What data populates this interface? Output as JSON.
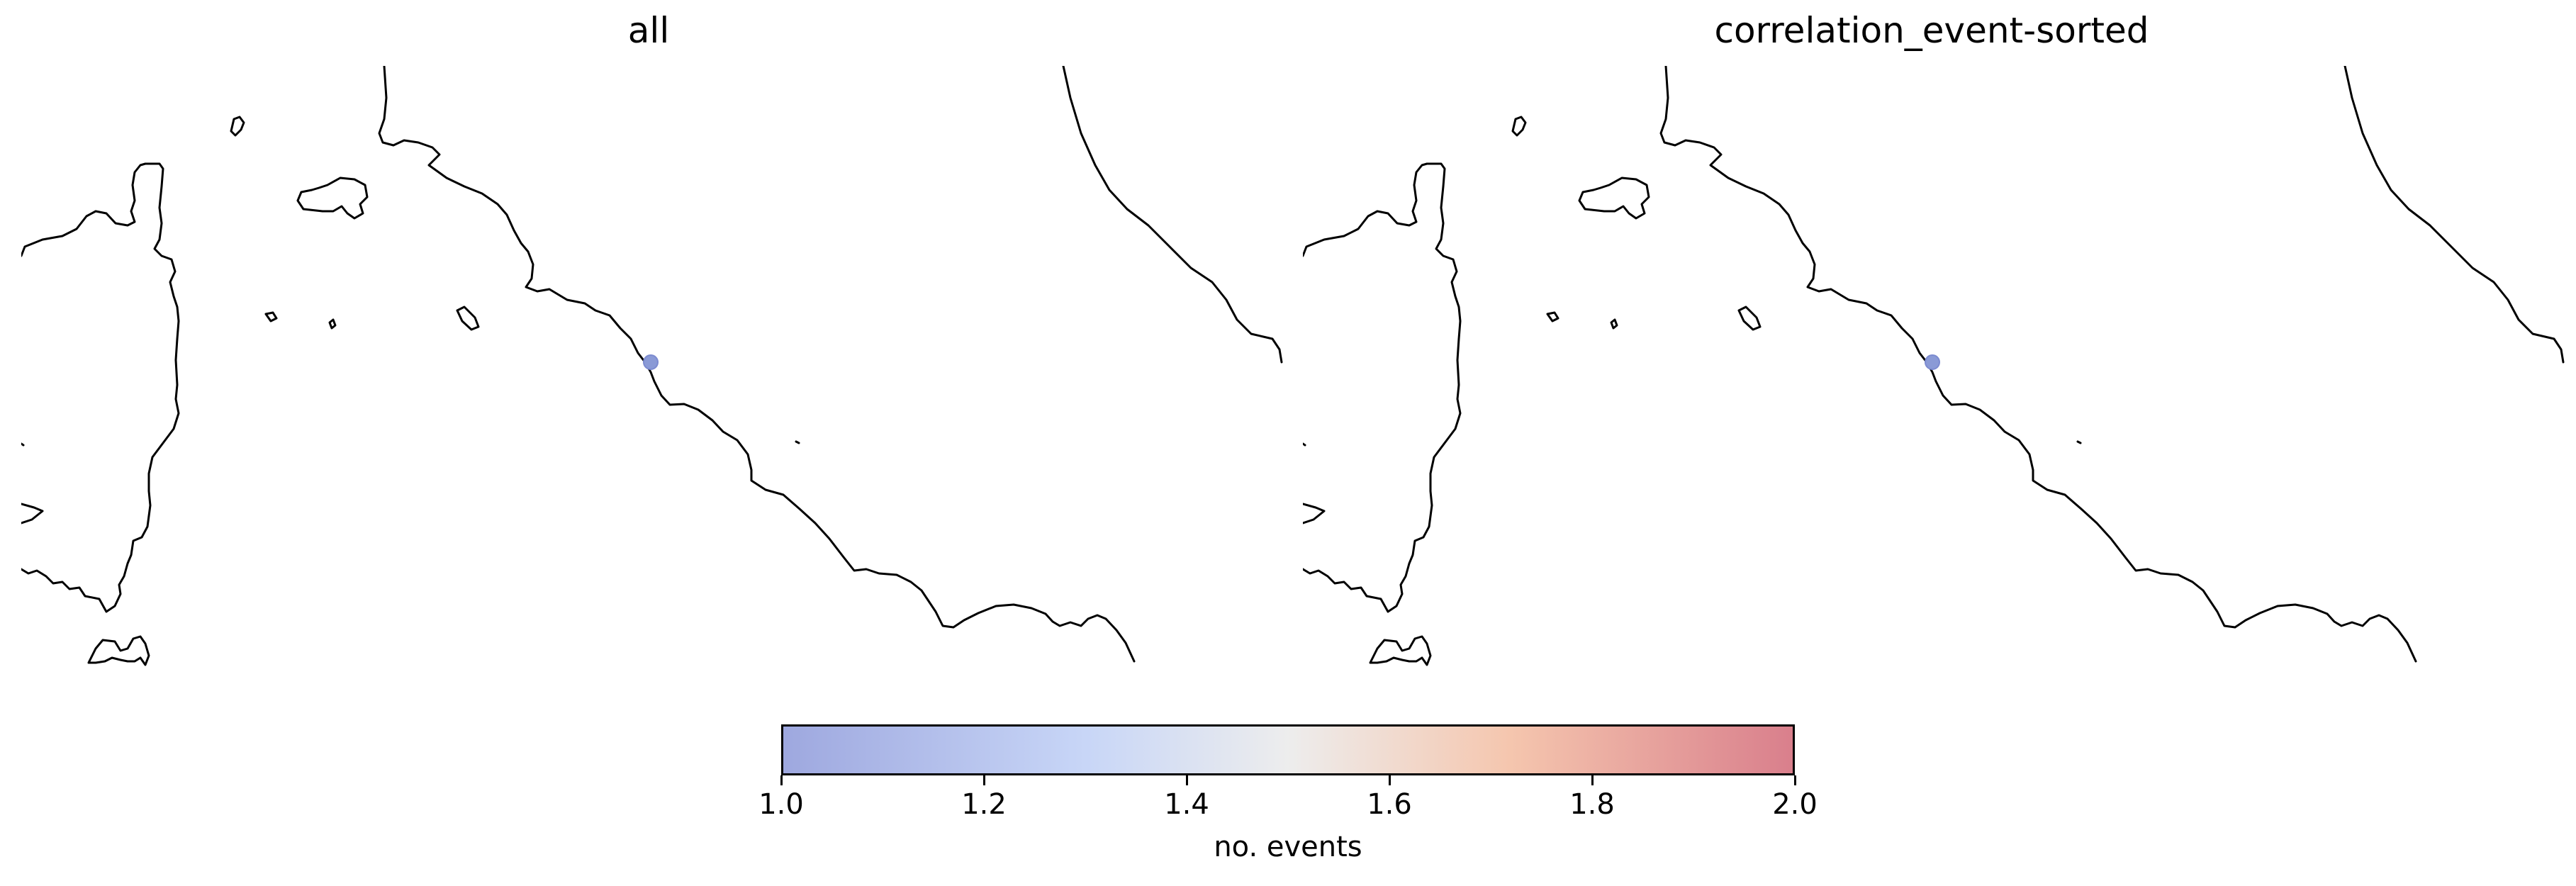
{
  "panels": [
    {
      "title": "all"
    },
    {
      "title": "correlation_event-sorted"
    }
  ],
  "event_point": {
    "count": 1,
    "color": "#8a9ad6"
  },
  "colorbar": {
    "label": "no. events",
    "range": [
      1.0,
      2.0
    ],
    "ticks": [
      "1.0",
      "1.2",
      "1.4",
      "1.6",
      "1.8",
      "2.0"
    ],
    "colormap": "coolwarm",
    "color_low": "#9ea8df",
    "color_mid": "#ededed",
    "color_high": "#d97f8c"
  }
}
